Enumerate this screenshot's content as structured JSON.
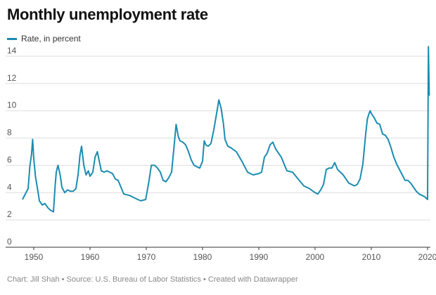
{
  "title": "Monthly unemployment rate",
  "legend_label": "Rate, in percent",
  "footer": "Chart: Jill Shah • Source: U.S. Bureau of Labor Statistics • Created with Datawrapper",
  "colors": {
    "line": "#1b8cb0"
  },
  "chart_data": {
    "type": "line",
    "title": "Monthly unemployment rate",
    "xlabel": "",
    "ylabel": "",
    "xlim": [
      1948,
      2020.5
    ],
    "ylim": [
      0,
      14
    ],
    "xticks": [
      1950,
      1960,
      1970,
      1980,
      1990,
      2000,
      2010,
      2020
    ],
    "yticks": [
      0,
      2,
      4,
      6,
      8,
      10,
      12,
      14
    ],
    "grid": true,
    "legend": "top-left",
    "series": [
      {
        "name": "Rate, in percent",
        "x": [
          1948.0,
          1948.5,
          1949.0,
          1949.3,
          1949.6,
          1949.8,
          1950.0,
          1950.3,
          1950.7,
          1951.0,
          1951.5,
          1952.0,
          1952.5,
          1953.0,
          1953.5,
          1953.8,
          1954.0,
          1954.3,
          1954.7,
          1955.0,
          1955.5,
          1956.0,
          1956.5,
          1957.0,
          1957.5,
          1957.9,
          1958.2,
          1958.5,
          1958.9,
          1959.3,
          1959.7,
          1960.0,
          1960.5,
          1960.9,
          1961.3,
          1961.7,
          1962.0,
          1962.5,
          1963.0,
          1963.5,
          1964.0,
          1964.5,
          1965.0,
          1965.5,
          1966.0,
          1967.0,
          1968.0,
          1969.0,
          1969.9,
          1970.5,
          1970.9,
          1971.5,
          1972.0,
          1972.5,
          1973.0,
          1973.5,
          1974.0,
          1974.5,
          1974.9,
          1975.3,
          1975.7,
          1976.0,
          1976.5,
          1977.0,
          1977.5,
          1978.0,
          1978.5,
          1979.0,
          1979.5,
          1980.0,
          1980.3,
          1980.6,
          1981.0,
          1981.5,
          1982.0,
          1982.5,
          1982.9,
          1983.3,
          1983.7,
          1984.0,
          1984.5,
          1985.0,
          1986.0,
          1987.0,
          1988.0,
          1989.0,
          1990.0,
          1990.5,
          1991.0,
          1991.5,
          1992.0,
          1992.5,
          1993.0,
          1993.5,
          1994.0,
          1994.5,
          1995.0,
          1996.0,
          1997.0,
          1998.0,
          1999.0,
          2000.0,
          2000.5,
          2001.0,
          2001.5,
          2002.0,
          2002.5,
          2003.0,
          2003.5,
          2004.0,
          2005.0,
          2006.0,
          2007.0,
          2007.5,
          2008.0,
          2008.5,
          2009.0,
          2009.3,
          2009.6,
          2009.8,
          2010.0,
          2010.5,
          2011.0,
          2011.5,
          2012.0,
          2012.5,
          2013.0,
          2013.5,
          2014.0,
          2014.5,
          2015.0,
          2015.5,
          2016.0,
          2016.5,
          2017.0,
          2017.5,
          2018.0,
          2018.5,
          2019.0,
          2019.5,
          2020.0,
          2020.15,
          2020.3
        ],
        "values": [
          3.5,
          3.9,
          4.3,
          5.9,
          6.8,
          7.9,
          6.5,
          5.2,
          4.2,
          3.4,
          3.1,
          3.2,
          2.9,
          2.7,
          2.6,
          4.5,
          5.5,
          6.0,
          5.3,
          4.4,
          4.0,
          4.2,
          4.1,
          4.1,
          4.3,
          5.4,
          6.7,
          7.4,
          6.0,
          5.3,
          5.6,
          5.2,
          5.5,
          6.6,
          7.0,
          6.2,
          5.6,
          5.5,
          5.6,
          5.5,
          5.4,
          5.0,
          4.9,
          4.4,
          3.9,
          3.8,
          3.6,
          3.4,
          3.5,
          4.9,
          6.0,
          6.0,
          5.8,
          5.5,
          4.9,
          4.8,
          5.1,
          5.5,
          7.2,
          9.0,
          8.1,
          7.8,
          7.7,
          7.5,
          7.0,
          6.4,
          6.0,
          5.9,
          5.8,
          6.3,
          7.8,
          7.5,
          7.4,
          7.6,
          8.6,
          9.8,
          10.8,
          10.2,
          9.1,
          7.9,
          7.4,
          7.3,
          7.0,
          6.3,
          5.5,
          5.3,
          5.4,
          5.5,
          6.6,
          6.9,
          7.5,
          7.7,
          7.2,
          6.9,
          6.6,
          6.1,
          5.6,
          5.5,
          5.0,
          4.5,
          4.3,
          4.0,
          3.9,
          4.2,
          4.6,
          5.7,
          5.8,
          5.8,
          6.2,
          5.7,
          5.3,
          4.7,
          4.5,
          4.6,
          5.0,
          6.1,
          8.3,
          9.4,
          9.8,
          10.0,
          9.8,
          9.5,
          9.1,
          9.0,
          8.3,
          8.2,
          7.9,
          7.3,
          6.6,
          6.1,
          5.7,
          5.3,
          4.9,
          4.9,
          4.7,
          4.4,
          4.1,
          3.9,
          3.8,
          3.7,
          3.5,
          14.7,
          11.1
        ]
      }
    ]
  }
}
